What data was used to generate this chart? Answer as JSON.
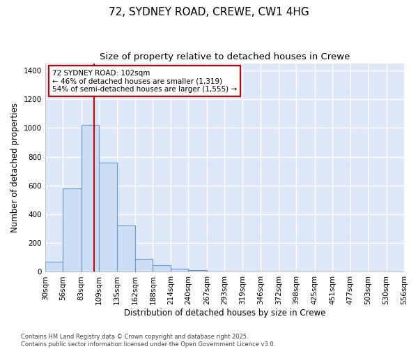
{
  "title_line1": "72, SYDNEY ROAD, CREWE, CW1 4HG",
  "title_line2": "Size of property relative to detached houses in Crewe",
  "xlabel": "Distribution of detached houses by size in Crewe",
  "ylabel": "Number of detached properties",
  "bin_edges": [
    30,
    56,
    83,
    109,
    135,
    162,
    188,
    214,
    240,
    267,
    293,
    319,
    346,
    372,
    398,
    425,
    451,
    477,
    503,
    530,
    556
  ],
  "bar_heights": [
    70,
    580,
    1020,
    760,
    320,
    90,
    45,
    20,
    10,
    0,
    0,
    0,
    0,
    0,
    0,
    0,
    0,
    0,
    0,
    0
  ],
  "bar_color": "#ccddf5",
  "bar_edge_color": "#6699cc",
  "background_color": "#ffffff",
  "plot_bg_color": "#dce8f8",
  "grid_color": "#ffffff",
  "property_size": 102,
  "red_line_color": "#cc0000",
  "annotation_text": "72 SYDNEY ROAD: 102sqm\n← 46% of detached houses are smaller (1,319)\n54% of semi-detached houses are larger (1,555) →",
  "annotation_box_color": "#cc0000",
  "ylim": [
    0,
    1450
  ],
  "yticks": [
    0,
    200,
    400,
    600,
    800,
    1000,
    1200,
    1400
  ],
  "footer_text": "Contains HM Land Registry data © Crown copyright and database right 2025.\nContains public sector information licensed under the Open Government Licence v3.0.",
  "title_fontsize": 11,
  "subtitle_fontsize": 9.5,
  "axis_label_fontsize": 8.5,
  "tick_fontsize": 7.5,
  "annotation_fontsize": 7.5
}
